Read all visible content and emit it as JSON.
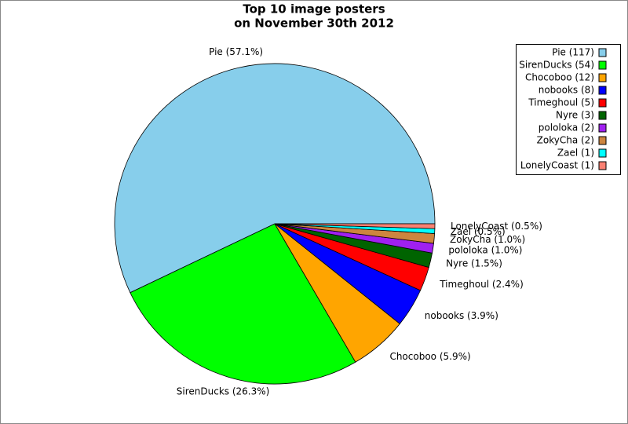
{
  "chart_data": {
    "type": "pie",
    "title": [
      "Top 10 image posters",
      "on November 30th 2012"
    ],
    "categories": [
      "Pie",
      "SirenDucks",
      "Chocoboo",
      "nobooks",
      "Timeghoul",
      "Nyre",
      "pololoka",
      "ZokyCha",
      "Zael",
      "LonelyCoast"
    ],
    "values": [
      117,
      54,
      12,
      8,
      5,
      3,
      2,
      2,
      1,
      1
    ],
    "value_labels": [
      "Pie (57.1%)",
      "SirenDucks (26.3%)",
      "Chocoboo (5.9%)",
      "nobooks (3.9%)",
      "Timeghoul (2.4%)",
      "Nyre (1.5%)",
      "pololoka (1.0%)",
      "ZokyCha (1.0%)",
      "Zael (0.5%)",
      "LonelyCoast (0.5%)"
    ],
    "legend_labels": [
      "Pie (117)",
      "SirenDucks (54)",
      "Chocoboo (12)",
      "nobooks (8)",
      "Timeghoul (5)",
      "Nyre (3)",
      "pololoka (2)",
      "ZokyCha (2)",
      "Zael (1)",
      "LonelyCoast (1)"
    ],
    "colors": [
      "#87ceeb",
      "#00ff00",
      "#ffa500",
      "#0000ff",
      "#ff0000",
      "#006400",
      "#a020f0",
      "#cd853f",
      "#00ffff",
      "#fa8072"
    ],
    "legend": "top-right"
  }
}
